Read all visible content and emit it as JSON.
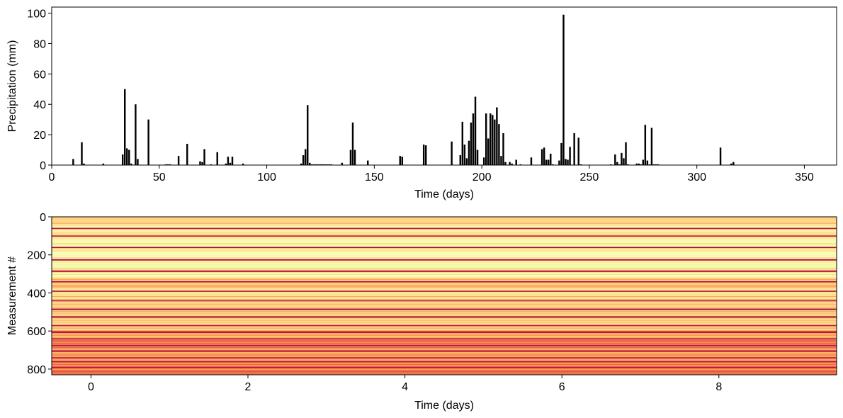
{
  "chart_data": [
    {
      "type": "bar",
      "title": "",
      "xlabel": "Time (days)",
      "ylabel": "Precipitation (mm)",
      "xlim": [
        0,
        365
      ],
      "ylim": [
        0,
        104
      ],
      "xticks": [
        0,
        50,
        100,
        150,
        200,
        250,
        300,
        350
      ],
      "yticks": [
        0,
        20,
        40,
        60,
        80,
        100
      ],
      "grid": false,
      "bar_color": "#000000",
      "x": [
        10,
        14,
        15,
        24,
        33,
        34,
        35,
        36,
        37,
        39,
        40,
        45,
        53,
        54,
        55,
        59,
        63,
        69,
        70,
        71,
        74,
        77,
        81,
        82,
        83,
        84,
        89,
        116,
        117,
        118,
        119,
        120,
        121,
        122,
        123,
        124,
        125,
        126,
        127,
        128,
        129,
        130,
        135,
        139,
        140,
        141,
        147,
        162,
        163,
        173,
        174,
        186,
        190,
        191,
        192,
        193,
        194,
        195,
        196,
        197,
        198,
        201,
        202,
        203,
        204,
        205,
        206,
        207,
        208,
        209,
        210,
        211,
        213,
        214,
        216,
        218,
        223,
        228,
        229,
        230,
        231,
        232,
        233,
        236,
        237,
        238,
        239,
        240,
        241,
        243,
        245,
        246,
        260,
        262,
        263,
        264,
        265,
        266,
        267,
        268,
        272,
        273,
        274,
        275,
        276,
        277,
        278,
        279,
        280,
        281,
        282,
        311,
        316,
        317
      ],
      "values": [
        4,
        15,
        1,
        1,
        7,
        50,
        11,
        10,
        1,
        40,
        4,
        30,
        0.5,
        0.5,
        0.5,
        6,
        14,
        2.5,
        2,
        10.5,
        0.5,
        8.5,
        1,
        5.5,
        1.5,
        5.5,
        1,
        1,
        6.5,
        10.5,
        39.5,
        1.5,
        0.5,
        0.5,
        0.5,
        0.5,
        0.5,
        0.5,
        0.5,
        0.5,
        0.5,
        0.5,
        1.5,
        10,
        28,
        10,
        3,
        6,
        5.5,
        13.5,
        13,
        15.5,
        6.5,
        28.5,
        13.5,
        4.5,
        16,
        28,
        34,
        45,
        10,
        5,
        34,
        17.5,
        34,
        33,
        30,
        38,
        27,
        6,
        21,
        2,
        2,
        1,
        3.5,
        0.5,
        5,
        10.5,
        11.5,
        3.5,
        3.5,
        7.5,
        0.5,
        3,
        14.5,
        99,
        4,
        3.5,
        12,
        21,
        18,
        0.5,
        0.5,
        7,
        2,
        0.5,
        8,
        4.5,
        15,
        0.5,
        1,
        1,
        0.5,
        3.5,
        26.5,
        3,
        0.5,
        24.5,
        0.5,
        0.5,
        0.5,
        11.5,
        1,
        2
      ]
    },
    {
      "type": "heatmap",
      "title": "",
      "xlabel": "Time (days)",
      "ylabel": "Measurement #",
      "xlim": [
        -0.5,
        9.5
      ],
      "ylim": [
        830,
        0
      ],
      "xticks": [
        0,
        2,
        4,
        6,
        8
      ],
      "yticks": [
        0,
        200,
        400,
        600,
        800
      ],
      "colormap": "Spectral",
      "colormap_stops": [
        "#9e0142",
        "#d53e4f",
        "#f46d43",
        "#fdae61",
        "#fee08b",
        "#ffffbf",
        "#e6f598"
      ],
      "n_columns": 10,
      "n_rows": 830,
      "row_pattern_note": "Horizontal banded stripes constant across time; values vary by measurement row",
      "dark_band_rows": [
        60,
        100,
        160,
        225,
        285,
        340,
        390,
        440,
        485,
        525,
        570,
        605,
        640,
        675,
        705,
        740,
        760,
        790
      ],
      "light_band_rows": [
        130,
        150,
        190,
        200,
        250,
        260,
        310
      ]
    }
  ]
}
